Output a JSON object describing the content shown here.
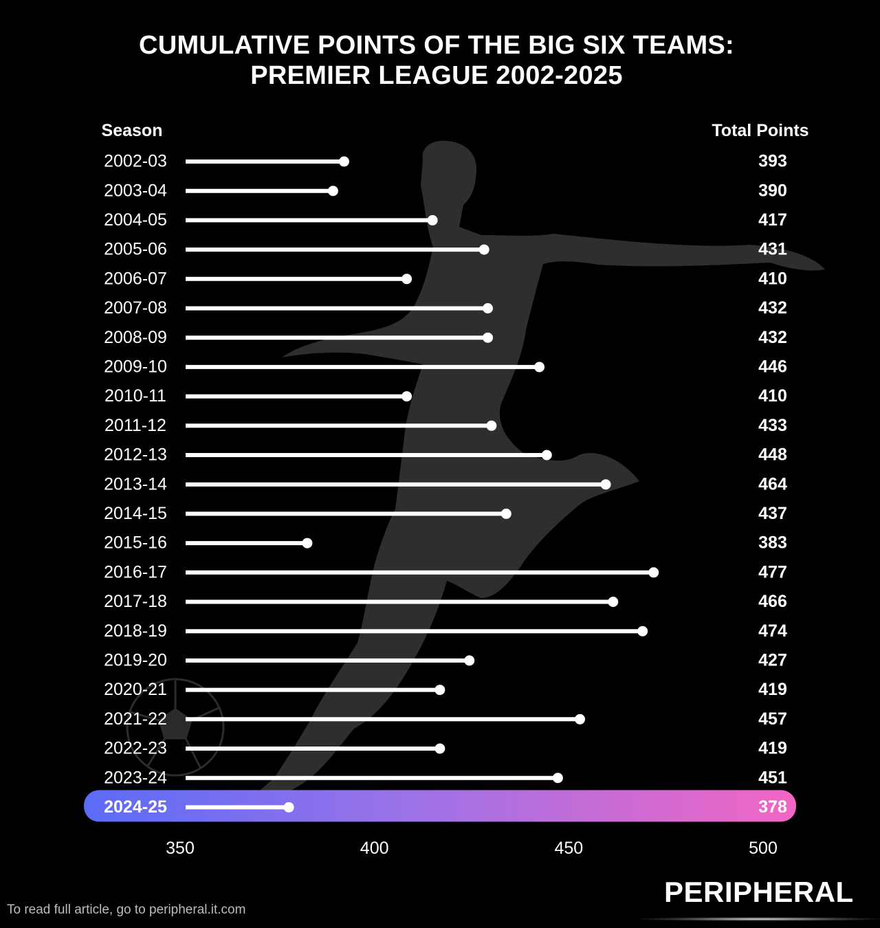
{
  "title_line1": "CUMULATIVE POINTS OF THE BIG SIX TEAMS:",
  "title_line2": "PREMIER LEAGUE 2002-2025",
  "footer": "To read full article, go to peripheral.it.com",
  "brand": "PERIPHERAL",
  "colors": {
    "background": "#000000",
    "bar": "#ffffff",
    "silhouette": "#2e2e2e",
    "highlight_start": "#5b6cf6",
    "highlight_mid": "#9b72e8",
    "highlight_end": "#f266c4"
  },
  "chart_data": {
    "type": "bar",
    "orientation": "horizontal",
    "style": "lollipop",
    "xlabel": "",
    "ylabel": "",
    "category_header": "Season",
    "value_header": "Total Points",
    "xlim": [
      350,
      500
    ],
    "xticks": [
      350,
      400,
      450,
      500
    ],
    "grid": false,
    "legend": "none",
    "highlight": "2024-25",
    "categories": [
      "2002-03",
      "2003-04",
      "2004-05",
      "2005-06",
      "2006-07",
      "2007-08",
      "2008-09",
      "2009-10",
      "2010-11",
      "2011-12",
      "2012-13",
      "2013-14",
      "2014-15",
      "2015-16",
      "2016-17",
      "2017-18",
      "2018-19",
      "2019-20",
      "2020-21",
      "2021-22",
      "2022-23",
      "2023-24",
      "2024-25"
    ],
    "values": [
      393,
      390,
      417,
      431,
      410,
      432,
      432,
      446,
      410,
      433,
      448,
      464,
      437,
      383,
      477,
      466,
      474,
      427,
      419,
      457,
      419,
      451,
      378
    ]
  }
}
